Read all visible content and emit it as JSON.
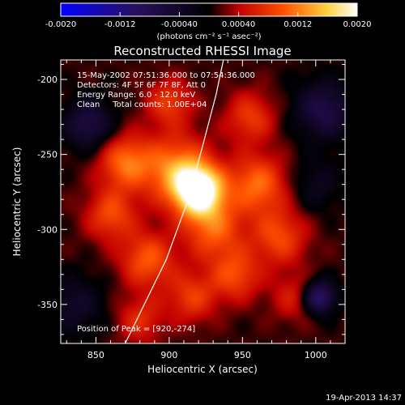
{
  "chart_data": {
    "type": "heatmap",
    "title": "Reconstructed RHESSI Image",
    "xlabel": "Heliocentric X (arcsec)",
    "ylabel": "Heliocentric Y (arcsec)",
    "xlim": [
      826,
      1020
    ],
    "ylim": [
      -376,
      -187
    ],
    "x_ticks": [
      850,
      900,
      950,
      1000
    ],
    "y_ticks": [
      -200,
      -250,
      -300,
      -350
    ],
    "colorbar": {
      "range": [
        -0.002,
        0.002
      ],
      "ticks": [
        "-0.0020",
        "-0.0012",
        "-0.00040",
        "0.00040",
        "0.0012",
        "0.0020"
      ],
      "unit_label": "(photons cm⁻² s⁻¹ asec⁻²)",
      "colors": [
        "#0000ff",
        "#2a1060",
        "#000000",
        "#ff0000",
        "#ff8800",
        "#ffff80",
        "#ffffff"
      ]
    },
    "annotations": {
      "time_range": "15-May-2002 07:51:36.000 to 07:54:36.000",
      "detectors": "Detectors: 4F 5F 6F 7F 8F, Att 0",
      "energy": "Energy Range: 6.0 - 12.0 keV",
      "method": "Clean     Total counts: 1.00E+04",
      "peak": "Position of Peak = [920,-274]"
    },
    "peak": {
      "x": 920,
      "y": -274
    },
    "sources": [
      {
        "x": 920,
        "y": -274,
        "amp": 0.002,
        "sigma": 12
      },
      {
        "x": 905,
        "y": -260,
        "amp": 0.0011,
        "sigma": 16
      },
      {
        "x": 930,
        "y": -300,
        "amp": 0.0009,
        "sigma": 14
      },
      {
        "x": 870,
        "y": -255,
        "amp": 0.001,
        "sigma": 13
      },
      {
        "x": 860,
        "y": -290,
        "amp": 0.0008,
        "sigma": 12
      },
      {
        "x": 885,
        "y": -320,
        "amp": 0.0009,
        "sigma": 13
      },
      {
        "x": 945,
        "y": -330,
        "amp": 0.0008,
        "sigma": 12
      },
      {
        "x": 960,
        "y": -270,
        "amp": 0.001,
        "sigma": 14
      },
      {
        "x": 955,
        "y": -225,
        "amp": 0.0007,
        "sigma": 12
      },
      {
        "x": 900,
        "y": -215,
        "amp": 0.0007,
        "sigma": 11
      },
      {
        "x": 975,
        "y": -305,
        "amp": 0.0008,
        "sigma": 13
      },
      {
        "x": 915,
        "y": -345,
        "amp": 0.0007,
        "sigma": 12
      },
      {
        "x": 880,
        "y": -360,
        "amp": 0.0006,
        "sigma": 11
      },
      {
        "x": 985,
        "y": -345,
        "amp": 0.0005,
        "sigma": 11
      },
      {
        "x": 845,
        "y": -230,
        "amp": -0.0008,
        "sigma": 12
      },
      {
        "x": 1005,
        "y": -220,
        "amp": -0.0008,
        "sigma": 14
      },
      {
        "x": 1002,
        "y": -345,
        "amp": -0.0012,
        "sigma": 8
      },
      {
        "x": 835,
        "y": -350,
        "amp": -0.0005,
        "sigma": 14
      },
      {
        "x": 1000,
        "y": -270,
        "amp": -0.0004,
        "sigma": 12
      }
    ],
    "limb_line": [
      [
        870,
        -376
      ],
      [
        883,
        -350
      ],
      [
        898,
        -320
      ],
      [
        913,
        -280
      ],
      [
        924,
        -240
      ],
      [
        932,
        -210
      ],
      [
        937,
        -187
      ]
    ],
    "date_stamp": "19-Apr-2013 14:37"
  }
}
